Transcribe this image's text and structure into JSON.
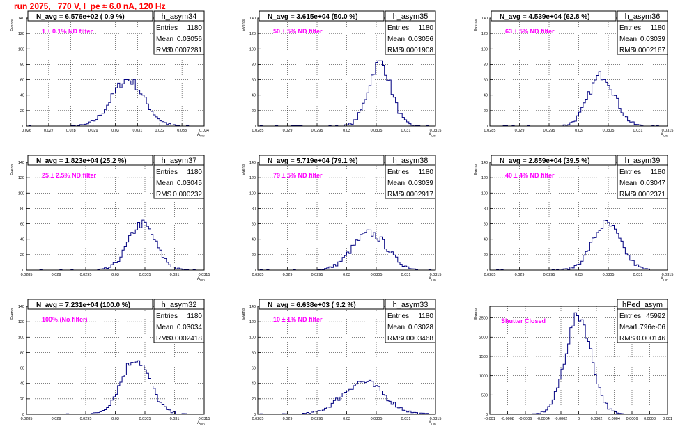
{
  "header": {
    "title": "run 2075,   770 V, I_pe ≈ 6.0 nA, 120 Hz"
  },
  "colors": {
    "histogram": "#000080",
    "frame": "#000000",
    "grid": "#000000",
    "annotation": "#ff00ff",
    "title": "#ff0000",
    "background": "#ffffff"
  },
  "chart_data": [
    {
      "type": "bar",
      "title": "h_asym34",
      "ylabel": "Events",
      "xlabel": "A_UID",
      "navg": "N_avg = 6.576e+02 ( 0.9 %)",
      "note": "1 ± 0.1% ND filter",
      "stats": {
        "entries_label": "Entries",
        "entries": "1180",
        "mean_label": "Mean",
        "mean": "0.03056",
        "rms_label": "RMS",
        "rms": "0.0007281"
      },
      "xlim": [
        0.026,
        0.034
      ],
      "ylim": [
        0,
        140
      ],
      "xticks": [
        "0.026",
        "0.027",
        "0.028",
        "0.029",
        "0.03",
        "0.031",
        "0.032",
        "0.033",
        "0.034"
      ],
      "yticks": [
        "0",
        "20",
        "40",
        "60",
        "80",
        "100",
        "120",
        "140"
      ],
      "mean": 0.03056,
      "sigma": 0.00073,
      "peak": 60
    },
    {
      "type": "bar",
      "title": "h_asym35",
      "ylabel": "Events",
      "xlabel": "A_UID",
      "navg": "N_avg = 3.615e+04 (50.0 %)",
      "note": "50 ± 5% ND filter",
      "stats": {
        "entries_label": "Entries",
        "entries": "1180",
        "mean_label": "Mean",
        "mean": "0.03056",
        "rms_label": "RMS",
        "rms": "0.0001908"
      },
      "xlim": [
        0.0285,
        0.0315
      ],
      "ylim": [
        0,
        140
      ],
      "xticks": [
        "0.0285",
        "0.029",
        "0.0295",
        "0.03",
        "0.0305",
        "0.031",
        "0.0315"
      ],
      "yticks": [
        "0",
        "20",
        "40",
        "60",
        "80",
        "100",
        "120",
        "140"
      ],
      "mean": 0.03056,
      "sigma": 0.00019,
      "peak": 82
    },
    {
      "type": "bar",
      "title": "h_asym36",
      "ylabel": "Events",
      "xlabel": "A_UID",
      "navg": "N_avg = 4.539e+04 (62.8 %)",
      "note": "63 ± 5% ND filter",
      "stats": {
        "entries_label": "Entries",
        "entries": "1180",
        "mean_label": "Mean",
        "mean": "0.03039",
        "rms_label": "RMS",
        "rms": "0.0002167"
      },
      "xlim": [
        0.0285,
        0.0315
      ],
      "ylim": [
        0,
        140
      ],
      "xticks": [
        "0.0285",
        "0.029",
        "0.0295",
        "0.03",
        "0.0305",
        "0.031",
        "0.0315"
      ],
      "yticks": [
        "0",
        "20",
        "40",
        "60",
        "80",
        "100",
        "120",
        "140"
      ],
      "mean": 0.03039,
      "sigma": 0.00022,
      "peak": 66
    },
    {
      "type": "bar",
      "title": "h_asym37",
      "ylabel": "Events",
      "xlabel": "A_UID",
      "navg": "N_avg = 1.823e+04 (25.2 %)",
      "note": "25 ± 2.5% ND filter",
      "stats": {
        "entries_label": "Entries",
        "entries": "1180",
        "mean_label": "Mean",
        "mean": "0.03045",
        "rms_label": "RMS",
        "rms": "0.000232"
      },
      "xlim": [
        0.0285,
        0.0315
      ],
      "ylim": [
        0,
        140
      ],
      "xticks": [
        "0.0285",
        "0.029",
        "0.0295",
        "0.03",
        "0.0305",
        "0.031",
        "0.0315"
      ],
      "yticks": [
        "0",
        "20",
        "40",
        "60",
        "80",
        "100",
        "120",
        "140"
      ],
      "mean": 0.03045,
      "sigma": 0.00023,
      "peak": 60
    },
    {
      "type": "bar",
      "title": "h_asym38",
      "ylabel": "Events",
      "xlabel": "A_UID",
      "navg": "N_avg = 5.719e+04 (79.1 %)",
      "note": "79 ± 5% ND filter",
      "stats": {
        "entries_label": "Entries",
        "entries": "1180",
        "mean_label": "Mean",
        "mean": "0.03039",
        "rms_label": "RMS",
        "rms": "0.0002917"
      },
      "xlim": [
        0.0285,
        0.0315
      ],
      "ylim": [
        0,
        140
      ],
      "xticks": [
        "0.0285",
        "0.029",
        "0.0295",
        "0.03",
        "0.0305",
        "0.031",
        "0.0315"
      ],
      "yticks": [
        "0",
        "20",
        "40",
        "60",
        "80",
        "100",
        "120",
        "140"
      ],
      "mean": 0.03039,
      "sigma": 0.00029,
      "peak": 48
    },
    {
      "type": "bar",
      "title": "h_asym39",
      "ylabel": "Events",
      "xlabel": "A_UID",
      "navg": "N_avg = 2.859e+04 (39.5 %)",
      "note": "40 ± 4% ND filter",
      "stats": {
        "entries_label": "Entries",
        "entries": "1180",
        "mean_label": "Mean",
        "mean": "0.03047",
        "rms_label": "RMS",
        "rms": "0.0002371"
      },
      "xlim": [
        0.0285,
        0.0315
      ],
      "ylim": [
        0,
        140
      ],
      "xticks": [
        "0.0285",
        "0.029",
        "0.0295",
        "0.03",
        "0.0305",
        "0.031",
        "0.0315"
      ],
      "yticks": [
        "0",
        "20",
        "40",
        "60",
        "80",
        "100",
        "120",
        "140"
      ],
      "mean": 0.03047,
      "sigma": 0.00024,
      "peak": 60
    },
    {
      "type": "bar",
      "title": "h_asym32",
      "ylabel": "Events",
      "xlabel": "A_UID",
      "navg": "N_avg = 7.231e+04 (100.0 %)",
      "note": "100% (No filter)",
      "stats": {
        "entries_label": "Entries",
        "entries": "1180",
        "mean_label": "Mean",
        "mean": "0.03034",
        "rms_label": "RMS",
        "rms": "0.0002418"
      },
      "xlim": [
        0.0285,
        0.0315
      ],
      "ylim": [
        0,
        140
      ],
      "xticks": [
        "0.0285",
        "0.029",
        "0.0295",
        "0.03",
        "0.0305",
        "0.031",
        "0.0315"
      ],
      "yticks": [
        "0",
        "20",
        "40",
        "60",
        "80",
        "100",
        "120",
        "140"
      ],
      "mean": 0.03034,
      "sigma": 0.00024,
      "peak": 72
    },
    {
      "type": "bar",
      "title": "h_asym33",
      "ylabel": "Events",
      "xlabel": "A_UID",
      "navg": "N_avg = 6.638e+03 ( 9.2 %)",
      "note": "10 ± 1% ND filter",
      "stats": {
        "entries_label": "Entries",
        "entries": "1180",
        "mean_label": "Mean",
        "mean": "0.03028",
        "rms_label": "RMS",
        "rms": "0.0003468"
      },
      "xlim": [
        0.0285,
        0.0315
      ],
      "ylim": [
        0,
        140
      ],
      "xticks": [
        "0.0285",
        "0.029",
        "0.0295",
        "0.03",
        "0.0305",
        "0.031",
        "0.0315"
      ],
      "yticks": [
        "0",
        "20",
        "40",
        "60",
        "80",
        "100",
        "120",
        "140"
      ],
      "mean": 0.03028,
      "sigma": 0.00035,
      "peak": 42
    },
    {
      "type": "bar",
      "title": "hPed_asym",
      "ylabel": "Events",
      "xlabel": "",
      "navg": "",
      "note": "Shutter Closed",
      "stats": {
        "entries_label": "Entries",
        "entries": "45992",
        "mean_label": "Mean",
        "mean": "-1.796e-06",
        "rms_label": "RMS",
        "rms": "0.000146"
      },
      "xlim": [
        -0.001,
        0.001
      ],
      "ylim": [
        0,
        2800
      ],
      "xticks": [
        "-0.001",
        "-0.0008",
        "-0.0006",
        "-0.0004",
        "-0.0002",
        "0",
        "0.0002",
        "0.0004",
        "0.0006",
        "0.0008",
        "0.001"
      ],
      "yticks": [
        "0",
        "500",
        "1000",
        "1500",
        "2000",
        "2500"
      ],
      "mean": -1.8e-06,
      "sigma": 0.000146,
      "peak": 2550
    }
  ]
}
